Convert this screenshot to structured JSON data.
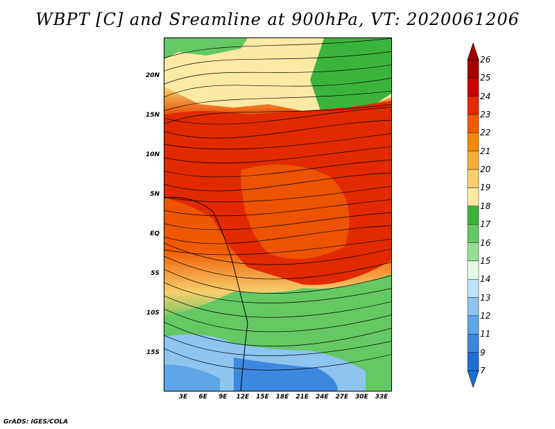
{
  "title": "WBPT [C] and Sreamline at 900hPa, VT: 2020061206",
  "footer": "GrADS: IGES/COLA",
  "lat_labels": [
    "20N",
    "15N",
    "10N",
    "5N",
    "EQ",
    "5S",
    "10S",
    "15S"
  ],
  "lon_labels": [
    "3E",
    "6E",
    "9E",
    "12E",
    "15E",
    "18E",
    "21E",
    "24E",
    "27E",
    "30E",
    "33E"
  ],
  "colorbar": {
    "labels": [
      "26",
      "25",
      "24",
      "23",
      "22",
      "21",
      "20",
      "19",
      "18",
      "17",
      "16",
      "15",
      "14",
      "13",
      "12",
      "11",
      "9",
      "7"
    ],
    "colors": [
      "#a50000",
      "#c80000",
      "#e12a00",
      "#f05a00",
      "#f58a0a",
      "#f5ad3a",
      "#f7cf6e",
      "#fbeaa3",
      "#3cb43c",
      "#64c864",
      "#96dc96",
      "#e6f8e6",
      "#c0e2f8",
      "#8ec4ee",
      "#5ea6e6",
      "#3c88de",
      "#1f6ed4"
    ]
  }
}
